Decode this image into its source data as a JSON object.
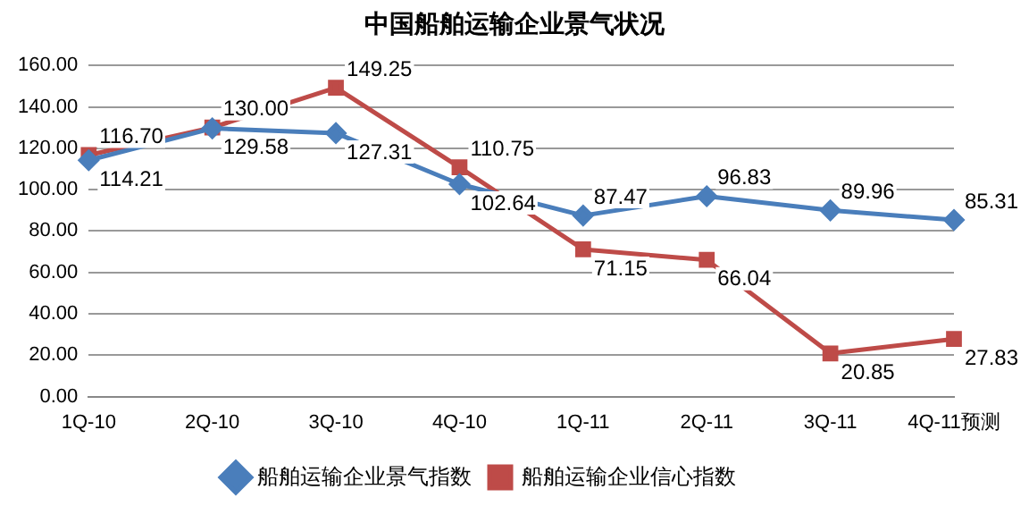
{
  "chart_data": {
    "type": "line",
    "title": "中国船舶运输企业景气状况",
    "categories": [
      "1Q-10",
      "2Q-10",
      "3Q-10",
      "4Q-10",
      "1Q-11",
      "2Q-11",
      "3Q-11",
      "4Q-11预测"
    ],
    "series": [
      {
        "name": "船舶运输企业景气指数",
        "color": "#4a7ebb",
        "marker": "diamond",
        "values": [
          114.21,
          129.58,
          127.31,
          102.64,
          87.47,
          96.83,
          89.96,
          85.31
        ],
        "value_labels": [
          "114.21",
          "129.58",
          "127.31",
          "102.64",
          "87.47",
          "96.83",
          "89.96",
          "85.31"
        ]
      },
      {
        "name": "船舶运输企业信心指数",
        "color": "#be4b48",
        "marker": "square",
        "values": [
          116.7,
          130.0,
          149.25,
          110.75,
          71.15,
          66.04,
          20.85,
          27.83
        ],
        "value_labels": [
          "116.70",
          "130.00",
          "149.25",
          "110.75",
          "71.15",
          "66.04",
          "20.85",
          "27.83"
        ]
      }
    ],
    "ylim": [
      0,
      160
    ],
    "yticks": [
      {
        "value": 0,
        "label": "0.00"
      },
      {
        "value": 20,
        "label": "20.00"
      },
      {
        "value": 40,
        "label": "40.00"
      },
      {
        "value": 60,
        "label": "60.00"
      },
      {
        "value": 80,
        "label": "80.00"
      },
      {
        "value": 100,
        "label": "100.00"
      },
      {
        "value": 120,
        "label": "120.00"
      },
      {
        "value": 140,
        "label": "140.00"
      },
      {
        "value": 160,
        "label": "160.00"
      }
    ],
    "grid": "y",
    "legend": "bottom",
    "line_style": "solid"
  }
}
